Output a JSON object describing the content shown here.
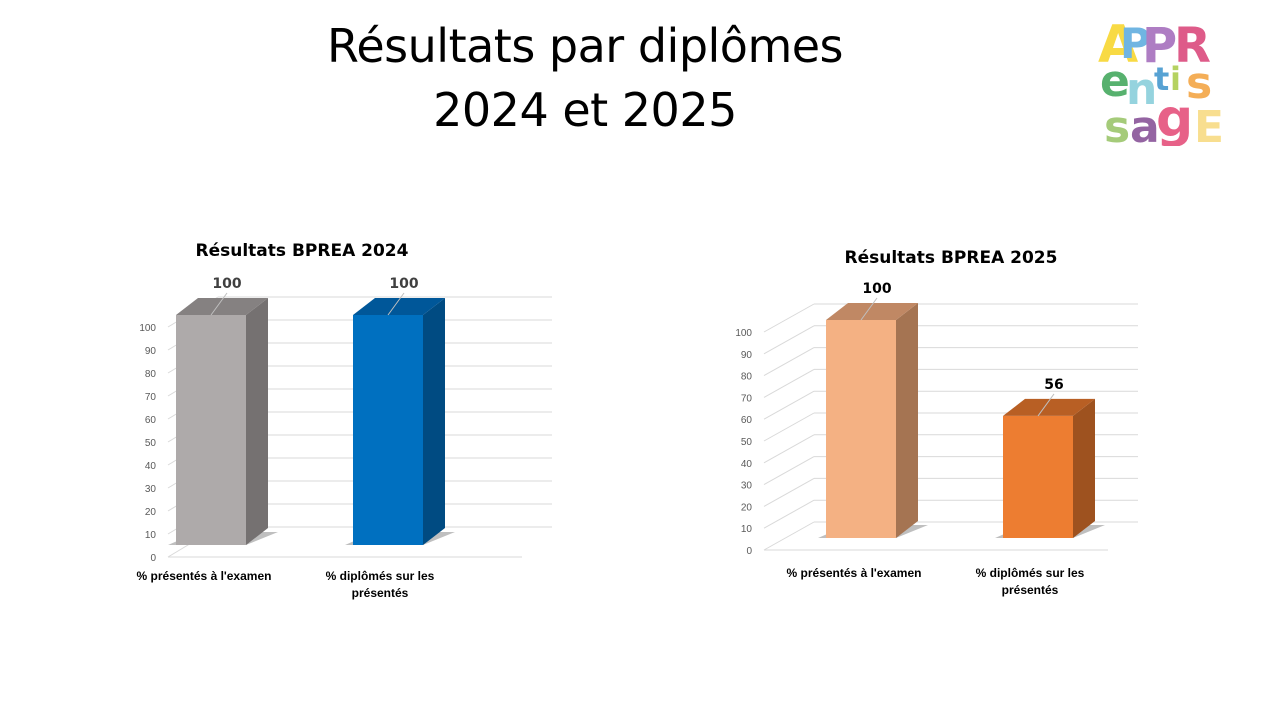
{
  "slide": {
    "title_line1": "Résultats par diplômes",
    "title_line2": "2024 et 2025"
  },
  "logo": {
    "icon": "apprentissage-logo",
    "letters": [
      "A",
      "P",
      "P",
      "R",
      "e",
      "n",
      "t",
      "i",
      "s",
      "s",
      "a",
      "g",
      "e"
    ]
  },
  "chart_data": [
    {
      "type": "bar",
      "style": "3d-column",
      "title": "Résultats BPREA 2024",
      "categories": [
        "% présentés à l'examen",
        "% diplômés sur les présentés"
      ],
      "category_lines": [
        [
          "% présentés à l'examen"
        ],
        [
          "% diplômés sur les",
          "présentés"
        ]
      ],
      "values": [
        100,
        100
      ],
      "data_labels": [
        "100",
        "100"
      ],
      "data_label_color": "#404040",
      "colors": [
        "#AEAAAA",
        "#0070C0"
      ],
      "side_colors": [
        "#757171",
        "#004B82"
      ],
      "top_colors": [
        "#858181",
        "#005799"
      ],
      "xlabel": "",
      "ylabel": "",
      "ylim": [
        0,
        100
      ],
      "yticks": [
        0,
        10,
        20,
        30,
        40,
        50,
        60,
        70,
        80,
        90,
        100
      ],
      "grid": true,
      "legend": "none"
    },
    {
      "type": "bar",
      "style": "3d-column",
      "title": "Résultats BPREA 2025",
      "categories": [
        "% présentés à l'examen",
        "% diplômés sur les présentés"
      ],
      "category_lines": [
        [
          "% présentés à l'examen"
        ],
        [
          "% diplômés sur les",
          "présentés"
        ]
      ],
      "values": [
        100,
        56
      ],
      "data_labels": [
        "100",
        "56"
      ],
      "data_label_color": "#000000",
      "colors": [
        "#F4B183",
        "#ED7D31"
      ],
      "side_colors": [
        "#A57452",
        "#9E521F"
      ],
      "top_colors": [
        "#C08864",
        "#B85F24"
      ],
      "xlabel": "",
      "ylabel": "",
      "ylim": [
        0,
        100
      ],
      "yticks": [
        0,
        10,
        20,
        30,
        40,
        50,
        60,
        70,
        80,
        90,
        100
      ],
      "grid": true,
      "legend": "none"
    }
  ]
}
